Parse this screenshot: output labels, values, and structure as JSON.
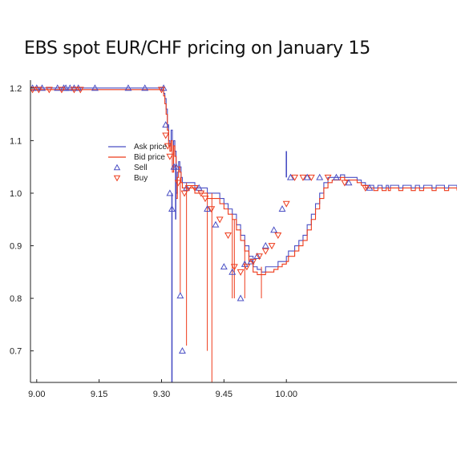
{
  "title": "EBS spot EUR/CHF pricing on January 15",
  "colors": {
    "ask": "#4a4fc4",
    "bid": "#ee3b1b"
  },
  "chart_data": {
    "type": "line",
    "title": "EBS spot EUR/CHF pricing on January 15",
    "xlabel": "",
    "ylabel": "",
    "xlim": [
      8.985,
      10.01
    ],
    "ylim": [
      0.64,
      1.215
    ],
    "x_ticks": [
      {
        "value": 9.0,
        "label": "9.00"
      },
      {
        "value": 9.15,
        "label": "9.15"
      },
      {
        "value": 9.3,
        "label": "9.30"
      },
      {
        "value": 9.45,
        "label": "9.45"
      },
      {
        "value": 10.0,
        "label": "10.00",
        "pos": 9.6
      }
    ],
    "y_ticks": [
      {
        "value": 1.2,
        "label": "1.2"
      },
      {
        "value": 1.1,
        "label": "1.1"
      },
      {
        "value": 1.0,
        "label": "1.0"
      },
      {
        "value": 0.9,
        "label": "0.9"
      },
      {
        "value": 0.8,
        "label": "0.8"
      },
      {
        "value": 0.7,
        "label": "0.7"
      }
    ],
    "legend": {
      "placement": "upper-left",
      "entries": [
        {
          "label": "Ask price",
          "kind": "line",
          "series": "ask"
        },
        {
          "label": "Bid price",
          "kind": "line",
          "series": "bid"
        },
        {
          "label": "Sell",
          "kind": "triangle-up",
          "series": "ask"
        },
        {
          "label": "Buy",
          "kind": "triangle-down",
          "series": "bid"
        }
      ]
    },
    "series": [
      {
        "name": "Ask price",
        "x": [
          8.985,
          9.05,
          9.1,
          9.2,
          9.3,
          9.302,
          9.305,
          9.308,
          9.311,
          9.314,
          9.317,
          9.32,
          9.323,
          9.326,
          9.329,
          9.332,
          9.335,
          9.338,
          9.341,
          9.344,
          9.347,
          9.35,
          9.36,
          9.37,
          9.38,
          9.39,
          9.4,
          9.41,
          9.42,
          9.43,
          9.44,
          9.45,
          9.46,
          9.47,
          9.48,
          9.49,
          9.5,
          9.51,
          9.52,
          9.53,
          9.54,
          9.55,
          9.56,
          9.57,
          9.58,
          9.59,
          9.6,
          9.605,
          9.61,
          9.62,
          9.63,
          9.64,
          9.65,
          9.66,
          9.67,
          9.68,
          9.69,
          9.7,
          9.71,
          9.72,
          9.73,
          9.74,
          9.75,
          9.76,
          9.77,
          9.78,
          9.79,
          9.8,
          9.81,
          9.82,
          9.83,
          9.84,
          9.845,
          9.85,
          9.86,
          9.87,
          9.88,
          9.89,
          9.9,
          9.91,
          9.92,
          9.93,
          9.94,
          9.95,
          9.96,
          9.97,
          9.98,
          9.99,
          10.0,
          10.01
        ],
        "y": [
          1.2,
          1.2,
          1.2,
          1.2,
          1.2,
          1.2,
          1.19,
          1.18,
          1.16,
          1.13,
          1.1,
          1.09,
          1.12,
          1.05,
          1.1,
          1.08,
          1.0,
          1.04,
          1.06,
          1.05,
          1.03,
          1.02,
          1.02,
          1.02,
          1.01,
          1.01,
          1.01,
          1.0,
          1.0,
          1.0,
          0.99,
          0.98,
          0.97,
          0.96,
          0.94,
          0.92,
          0.9,
          0.88,
          0.86,
          0.855,
          0.85,
          0.86,
          0.86,
          0.86,
          0.87,
          0.87,
          0.88,
          0.89,
          0.89,
          0.9,
          0.91,
          0.92,
          0.94,
          0.96,
          0.98,
          1.0,
          1.02,
          1.03,
          1.03,
          1.03,
          1.035,
          1.03,
          1.03,
          1.03,
          1.025,
          1.02,
          1.015,
          1.015,
          1.01,
          1.015,
          1.01,
          1.015,
          1.01,
          1.015,
          1.015,
          1.01,
          1.015,
          1.015,
          1.01,
          1.015,
          1.01,
          1.015,
          1.015,
          1.01,
          1.015,
          1.015,
          1.01,
          1.015,
          1.015,
          1.01
        ]
      },
      {
        "name": "Bid price",
        "x": [
          8.985,
          9.05,
          9.1,
          9.2,
          9.3,
          9.302,
          9.305,
          9.308,
          9.311,
          9.314,
          9.317,
          9.32,
          9.323,
          9.326,
          9.329,
          9.332,
          9.335,
          9.338,
          9.341,
          9.344,
          9.347,
          9.35,
          9.36,
          9.37,
          9.38,
          9.39,
          9.4,
          9.41,
          9.42,
          9.43,
          9.44,
          9.45,
          9.46,
          9.47,
          9.48,
          9.49,
          9.5,
          9.51,
          9.52,
          9.53,
          9.54,
          9.55,
          9.56,
          9.57,
          9.58,
          9.59,
          9.6,
          9.605,
          9.61,
          9.62,
          9.63,
          9.64,
          9.65,
          9.66,
          9.67,
          9.68,
          9.69,
          9.7,
          9.71,
          9.72,
          9.73,
          9.74,
          9.75,
          9.76,
          9.77,
          9.78,
          9.79,
          9.8,
          9.81,
          9.82,
          9.83,
          9.84,
          9.845,
          9.85,
          9.86,
          9.87,
          9.88,
          9.89,
          9.9,
          9.91,
          9.92,
          9.93,
          9.94,
          9.95,
          9.96,
          9.97,
          9.98,
          9.99,
          10.0,
          10.01
        ],
        "y": [
          1.197,
          1.197,
          1.197,
          1.197,
          1.197,
          1.197,
          1.185,
          1.17,
          1.15,
          1.12,
          1.09,
          1.08,
          1.1,
          1.04,
          1.09,
          1.07,
          0.99,
          1.03,
          1.05,
          1.04,
          1.02,
          1.01,
          1.01,
          1.01,
          1.0,
          1.0,
          1.0,
          0.99,
          0.99,
          0.99,
          0.98,
          0.97,
          0.96,
          0.95,
          0.93,
          0.91,
          0.89,
          0.87,
          0.85,
          0.845,
          0.845,
          0.85,
          0.85,
          0.855,
          0.86,
          0.865,
          0.87,
          0.88,
          0.88,
          0.89,
          0.9,
          0.91,
          0.93,
          0.95,
          0.97,
          0.99,
          1.01,
          1.02,
          1.025,
          1.025,
          1.03,
          1.025,
          1.025,
          1.025,
          1.02,
          1.015,
          1.01,
          1.01,
          1.005,
          1.01,
          1.005,
          1.01,
          1.005,
          1.01,
          1.01,
          1.005,
          1.01,
          1.01,
          1.005,
          1.01,
          1.005,
          1.01,
          1.01,
          1.005,
          1.01,
          1.01,
          1.005,
          1.01,
          1.01,
          1.005
        ]
      }
    ],
    "spikes": [
      {
        "series": "Ask price",
        "x": 9.325,
        "from": 1.0,
        "to": 0.64
      },
      {
        "series": "Ask price",
        "x": 9.334,
        "from": 1.05,
        "to": 0.95
      },
      {
        "series": "Bid price",
        "x": 9.345,
        "from": 1.03,
        "to": 0.81
      },
      {
        "series": "Bid price",
        "x": 9.36,
        "from": 1.02,
        "to": 0.71
      },
      {
        "series": "Bid price",
        "x": 9.41,
        "from": 1.0,
        "to": 0.7
      },
      {
        "series": "Bid price",
        "x": 9.421,
        "from": 1.0,
        "to": 0.64
      },
      {
        "series": "Bid price",
        "x": 9.47,
        "from": 0.95,
        "to": 0.8
      },
      {
        "series": "Bid price",
        "x": 9.475,
        "from": 0.95,
        "to": 0.8
      },
      {
        "series": "Bid price",
        "x": 9.5,
        "from": 0.9,
        "to": 0.8
      },
      {
        "series": "Bid price",
        "x": 9.54,
        "from": 0.86,
        "to": 0.8
      },
      {
        "series": "Ask price",
        "x": 9.6,
        "from": 1.03,
        "to": 1.08
      }
    ],
    "sell_points": {
      "x": [
        8.99,
        9.0,
        9.013,
        9.05,
        9.065,
        9.07,
        9.08,
        9.09,
        9.1,
        9.14,
        9.22,
        9.26,
        9.305,
        9.31,
        9.32,
        9.325,
        9.33,
        9.335,
        9.345,
        9.35,
        9.36,
        9.39,
        9.41,
        9.43,
        9.45,
        9.47,
        9.49,
        9.5,
        9.515,
        9.53,
        9.55,
        9.57,
        9.59,
        9.61,
        9.65,
        9.68,
        9.72,
        9.75,
        9.8
      ],
      "y": [
        1.2,
        1.2,
        1.2,
        1.2,
        1.2,
        1.2,
        1.2,
        1.2,
        1.2,
        1.2,
        1.2,
        1.2,
        1.2,
        1.13,
        1.0,
        0.97,
        1.05,
        1.05,
        0.805,
        0.7,
        1.01,
        1.01,
        0.97,
        0.94,
        0.86,
        0.85,
        0.8,
        0.865,
        0.87,
        0.88,
        0.9,
        0.93,
        0.97,
        1.03,
        1.03,
        1.03,
        1.03,
        1.02,
        1.01
      ]
    },
    "buy_points": {
      "x": [
        8.99,
        9.005,
        9.03,
        9.06,
        9.09,
        9.105,
        9.3,
        9.31,
        9.315,
        9.32,
        9.34,
        9.355,
        9.365,
        9.38,
        9.395,
        9.405,
        9.42,
        9.44,
        9.46,
        9.475,
        9.49,
        9.505,
        9.52,
        9.535,
        9.55,
        9.565,
        9.58,
        9.6,
        9.62,
        9.64,
        9.66,
        9.7,
        9.74,
        9.79
      ],
      "y": [
        1.197,
        1.197,
        1.197,
        1.197,
        1.197,
        1.197,
        1.197,
        1.11,
        1.09,
        1.07,
        1.02,
        1.0,
        1.01,
        1.01,
        1.0,
        0.99,
        0.97,
        0.95,
        0.92,
        0.86,
        0.85,
        0.86,
        0.87,
        0.88,
        0.89,
        0.9,
        0.92,
        0.98,
        1.03,
        1.03,
        1.03,
        1.03,
        1.02,
        1.01
      ]
    }
  }
}
